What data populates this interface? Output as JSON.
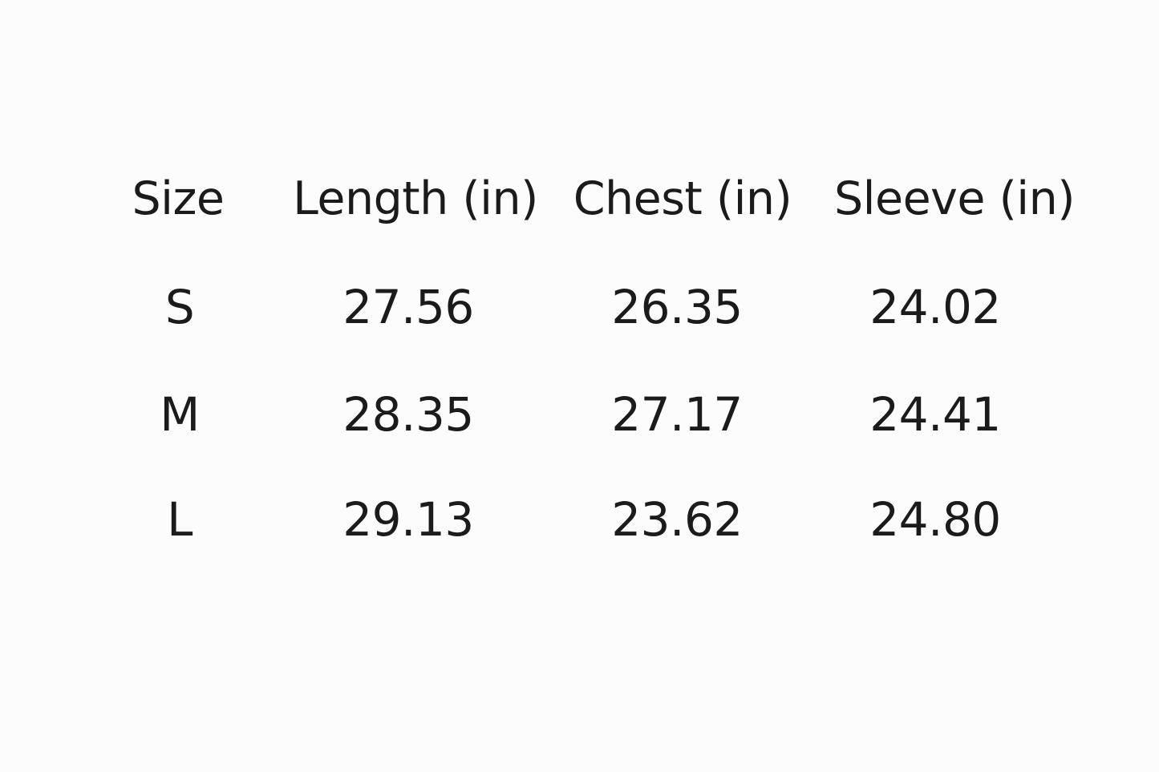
{
  "table": {
    "headers": [
      "Size",
      "Length (in)",
      "Chest (in)",
      "Sleeve (in)"
    ],
    "rows": [
      [
        "S",
        "27.56",
        "26.35",
        "24.02"
      ],
      [
        "M",
        "28.35",
        "27.17",
        "24.41"
      ],
      [
        "L",
        "29.13",
        "23.62",
        "24.80"
      ]
    ]
  }
}
